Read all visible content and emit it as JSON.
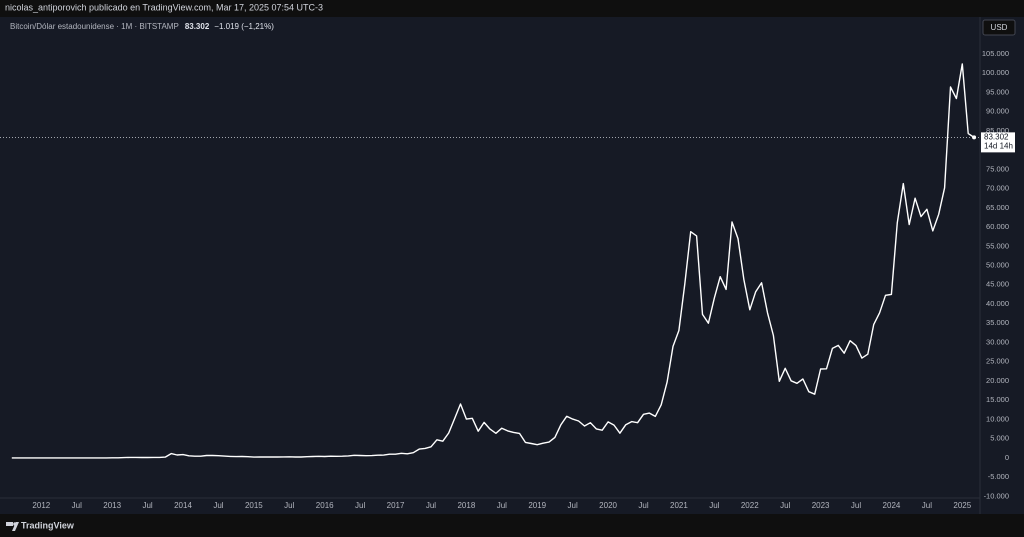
{
  "chart_data": {
    "type": "line",
    "header": "nicolas_antiporovich publicado en TradingView.com, Mar 17, 2025 07:54 UTC-3",
    "title": "Bitcoin/Dólar estadounidense · 1M · BITSTAMP",
    "last_price_label": "83.302",
    "change_label": "−1.019 (−1,21%)",
    "countdown": "14d 14h",
    "currency": "USD",
    "brand": "TradingView",
    "color": "#ffffff",
    "grid": false,
    "x": [
      "2011-08",
      "2011-09",
      "2011-10",
      "2011-11",
      "2011-12",
      "2012-01",
      "2012-02",
      "2012-03",
      "2012-04",
      "2012-05",
      "2012-06",
      "2012-07",
      "2012-08",
      "2012-09",
      "2012-10",
      "2012-11",
      "2012-12",
      "2013-01",
      "2013-02",
      "2013-03",
      "2013-04",
      "2013-05",
      "2013-06",
      "2013-07",
      "2013-08",
      "2013-09",
      "2013-10",
      "2013-11",
      "2013-12",
      "2014-01",
      "2014-02",
      "2014-03",
      "2014-04",
      "2014-05",
      "2014-06",
      "2014-07",
      "2014-08",
      "2014-09",
      "2014-10",
      "2014-11",
      "2014-12",
      "2015-01",
      "2015-02",
      "2015-03",
      "2015-04",
      "2015-05",
      "2015-06",
      "2015-07",
      "2015-08",
      "2015-09",
      "2015-10",
      "2015-11",
      "2015-12",
      "2016-01",
      "2016-02",
      "2016-03",
      "2016-04",
      "2016-05",
      "2016-06",
      "2016-07",
      "2016-08",
      "2016-09",
      "2016-10",
      "2016-11",
      "2016-12",
      "2017-01",
      "2017-02",
      "2017-03",
      "2017-04",
      "2017-05",
      "2017-06",
      "2017-07",
      "2017-08",
      "2017-09",
      "2017-10",
      "2017-11",
      "2017-12",
      "2018-01",
      "2018-02",
      "2018-03",
      "2018-04",
      "2018-05",
      "2018-06",
      "2018-07",
      "2018-08",
      "2018-09",
      "2018-10",
      "2018-11",
      "2018-12",
      "2019-01",
      "2019-02",
      "2019-03",
      "2019-04",
      "2019-05",
      "2019-06",
      "2019-07",
      "2019-08",
      "2019-09",
      "2019-10",
      "2019-11",
      "2019-12",
      "2020-01",
      "2020-02",
      "2020-03",
      "2020-04",
      "2020-05",
      "2020-06",
      "2020-07",
      "2020-08",
      "2020-09",
      "2020-10",
      "2020-11",
      "2020-12",
      "2021-01",
      "2021-02",
      "2021-03",
      "2021-04",
      "2021-05",
      "2021-06",
      "2021-07",
      "2021-08",
      "2021-09",
      "2021-10",
      "2021-11",
      "2021-12",
      "2022-01",
      "2022-02",
      "2022-03",
      "2022-04",
      "2022-05",
      "2022-06",
      "2022-07",
      "2022-08",
      "2022-09",
      "2022-10",
      "2022-11",
      "2022-12",
      "2023-01",
      "2023-02",
      "2023-03",
      "2023-04",
      "2023-05",
      "2023-06",
      "2023-07",
      "2023-08",
      "2023-09",
      "2023-10",
      "2023-11",
      "2023-12",
      "2024-01",
      "2024-02",
      "2024-03",
      "2024-04",
      "2024-05",
      "2024-06",
      "2024-07",
      "2024-08",
      "2024-09",
      "2024-10",
      "2024-11",
      "2024-12",
      "2025-01",
      "2025-02",
      "2025-03"
    ],
    "values": [
      8,
      5,
      3,
      3,
      5,
      6,
      5,
      5,
      5,
      5,
      7,
      9,
      10,
      12,
      11,
      13,
      13,
      20,
      33,
      93,
      139,
      129,
      97,
      106,
      135,
      141,
      211,
      1130,
      757,
      870,
      550,
      450,
      445,
      630,
      640,
      585,
      480,
      387,
      338,
      378,
      320,
      217,
      254,
      244,
      236,
      230,
      263,
      284,
      230,
      236,
      314,
      377,
      430,
      369,
      437,
      416,
      448,
      531,
      673,
      624,
      575,
      609,
      701,
      742,
      964,
      970,
      1190,
      1080,
      1350,
      2300,
      2480,
      2880,
      4700,
      4340,
      6470,
      10230,
      14000,
      10100,
      10300,
      6950,
      9240,
      7500,
      6400,
      7730,
      7030,
      6630,
      6370,
      4040,
      3740,
      3440,
      3820,
      4100,
      5330,
      8570,
      10820,
      10080,
      9600,
      8300,
      9150,
      7550,
      7200,
      9350,
      8540,
      6410,
      8620,
      9450,
      9140,
      11340,
      11650,
      10780,
      13800,
      19700,
      28990,
      33100,
      45200,
      58800,
      57700,
      37300,
      35000,
      41500,
      47100,
      43800,
      61300,
      57000,
      46300,
      38500,
      43200,
      45500,
      37700,
      31800,
      19900,
      23300,
      20050,
      19400,
      20500,
      17200,
      16550,
      23100,
      23150,
      28450,
      29250,
      27200,
      30450,
      29200,
      25950,
      26950,
      34650,
      37700,
      42250,
      42500,
      61150,
      71300,
      60650,
      67500,
      62700,
      64600,
      59000,
      63300,
      70200,
      96400,
      93400,
      102400,
      84300,
      83302
    ],
    "xlim": [
      "2011-06",
      "2025-04"
    ],
    "xticks": [
      {
        "value": "2012-01",
        "label": "2012"
      },
      {
        "value": "2012-07",
        "label": "Jul"
      },
      {
        "value": "2013-01",
        "label": "2013"
      },
      {
        "value": "2013-07",
        "label": "Jul"
      },
      {
        "value": "2014-01",
        "label": "2014"
      },
      {
        "value": "2014-07",
        "label": "Jul"
      },
      {
        "value": "2015-01",
        "label": "2015"
      },
      {
        "value": "2015-07",
        "label": "Jul"
      },
      {
        "value": "2016-01",
        "label": "2016"
      },
      {
        "value": "2016-07",
        "label": "Jul"
      },
      {
        "value": "2017-01",
        "label": "2017"
      },
      {
        "value": "2017-07",
        "label": "Jul"
      },
      {
        "value": "2018-01",
        "label": "2018"
      },
      {
        "value": "2018-07",
        "label": "Jul"
      },
      {
        "value": "2019-01",
        "label": "2019"
      },
      {
        "value": "2019-07",
        "label": "Jul"
      },
      {
        "value": "2020-01",
        "label": "2020"
      },
      {
        "value": "2020-07",
        "label": "Jul"
      },
      {
        "value": "2021-01",
        "label": "2021"
      },
      {
        "value": "2021-07",
        "label": "Jul"
      },
      {
        "value": "2022-01",
        "label": "2022"
      },
      {
        "value": "2022-07",
        "label": "Jul"
      },
      {
        "value": "2023-01",
        "label": "2023"
      },
      {
        "value": "2023-07",
        "label": "Jul"
      },
      {
        "value": "2024-01",
        "label": "2024"
      },
      {
        "value": "2024-07",
        "label": "Jul"
      },
      {
        "value": "2025-01",
        "label": "2025"
      }
    ],
    "ylim": [
      -10417,
      114583
    ],
    "yticks": [
      {
        "value": -10000,
        "label": "-10.000"
      },
      {
        "value": -5000,
        "label": "-5.000"
      },
      0,
      {
        "value": 5000,
        "label": "5.000"
      },
      {
        "value": 10000,
        "label": "10.000"
      },
      {
        "value": 15000,
        "label": "15.000"
      },
      {
        "value": 20000,
        "label": "20.000"
      },
      {
        "value": 25000,
        "label": "25.000"
      },
      {
        "value": 30000,
        "label": "30.000"
      },
      {
        "value": 35000,
        "label": "35.000"
      },
      {
        "value": 40000,
        "label": "40.000"
      },
      {
        "value": 45000,
        "label": "45.000"
      },
      {
        "value": 50000,
        "label": "50.000"
      },
      {
        "value": 55000,
        "label": "55.000"
      },
      {
        "value": 60000,
        "label": "60.000"
      },
      {
        "value": 65000,
        "label": "65.000"
      },
      {
        "value": 70000,
        "label": "70.000"
      },
      {
        "value": 75000,
        "label": "75.000"
      },
      {
        "value": 80000,
        "label": "80.000"
      },
      {
        "value": 85000,
        "label": "85.000"
      },
      {
        "value": 90000,
        "label": "90.000"
      },
      {
        "value": 95000,
        "label": "95.000"
      },
      {
        "value": 100000,
        "label": "100.000"
      },
      {
        "value": 105000,
        "label": "105.000"
      }
    ]
  }
}
